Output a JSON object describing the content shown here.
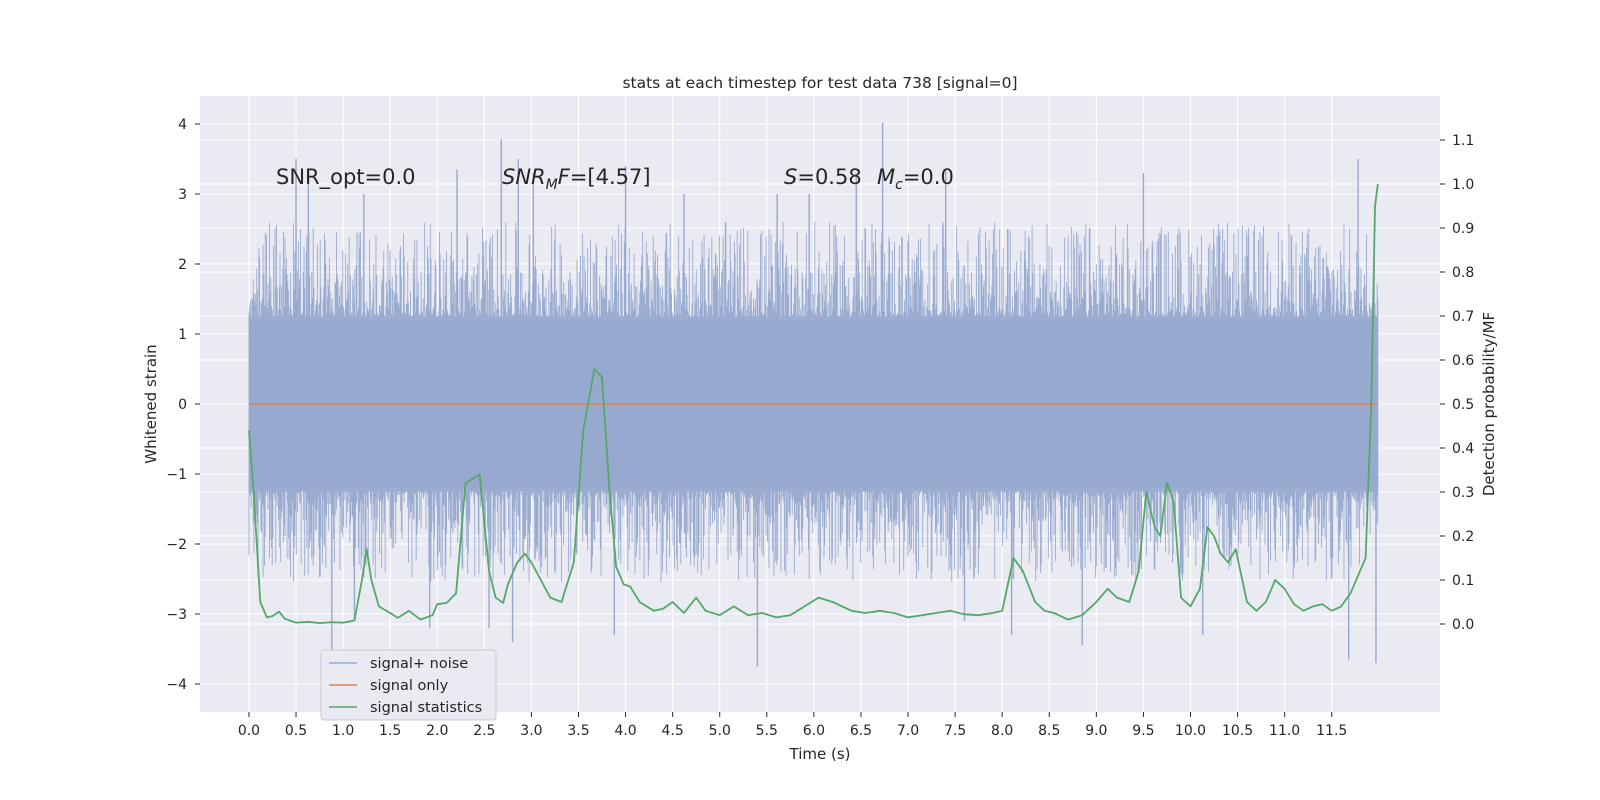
{
  "chart_data": {
    "type": "line",
    "title": "stats at each timestep for test data 738 [signal=0]",
    "xlabel": "Time (s)",
    "ylabel_left": "Whitened strain",
    "ylabel_right": "Detection probability/MF",
    "xlim": [
      -0.52,
      12.65
    ],
    "ylim_left": [
      -4.4,
      4.4
    ],
    "ylim_right": [
      -0.2,
      1.2
    ],
    "x_ticks": [
      0.0,
      0.5,
      1.0,
      1.5,
      2.0,
      2.5,
      3.0,
      3.5,
      4.0,
      4.5,
      5.0,
      5.5,
      6.0,
      6.5,
      7.0,
      7.5,
      8.0,
      8.5,
      9.0,
      9.5,
      10.0,
      10.5,
      11.0,
      11.5
    ],
    "x_tick_labels": [
      "0.0",
      "0.5",
      "1.0",
      "1.5",
      "2.0",
      "2.5",
      "3.0",
      "3.5",
      "4.0",
      "4.5",
      "5.0",
      "5.5",
      "6.0",
      "6.5",
      "7.0",
      "7.5",
      "8.0",
      "8.5",
      "9.0",
      "9.5",
      "10.0",
      "10.5",
      "11.0",
      "11.5"
    ],
    "y_ticks_left": [
      4,
      3,
      2,
      1,
      0,
      -1,
      -2,
      -3,
      -4
    ],
    "y_tick_labels_left": [
      "4",
      "3",
      "2",
      "1",
      "0",
      "−1",
      "−2",
      "−3",
      "−4"
    ],
    "y_ticks_right": [
      1.1,
      1.0,
      0.9,
      0.8,
      0.7,
      0.6,
      0.5,
      0.4,
      0.3,
      0.2,
      0.1,
      0.0
    ],
    "y_tick_labels_right": [
      "1.1",
      "1.0",
      "0.9",
      "0.8",
      "0.7",
      "0.6",
      "0.5",
      "0.4",
      "0.3",
      "0.2",
      "0.1",
      "0.0"
    ],
    "grid": true,
    "legend_position": "lower-left",
    "colors": {
      "background": "#eaeaf2",
      "grid": "#ffffff",
      "noise": "#97a9cf",
      "signal": "#dd8452",
      "stats": "#55a868"
    },
    "annotations": {
      "snr_opt": "SNR_opt=0.0",
      "snr_mf_main": "SNR",
      "snr_mf_sub": "M",
      "snr_mf_tail": "F",
      "snr_mf_value": "=[4.57]",
      "s_sym": "S",
      "s_value": "=0.58",
      "mc_main": "M",
      "mc_sub": "c",
      "mc_value": "=0.0"
    },
    "series": [
      {
        "name": "signal+ noise",
        "axis": "left",
        "x_range": [
          0.0,
          11.99
        ],
        "envelope_mean_abs": 1.25,
        "upper_spikes": [
          {
            "x": 0.5,
            "y": 3.5
          },
          {
            "x": 0.63,
            "y": 3.2
          },
          {
            "x": 1.22,
            "y": 3.0
          },
          {
            "x": 2.21,
            "y": 3.35
          },
          {
            "x": 2.68,
            "y": 3.78
          },
          {
            "x": 2.86,
            "y": 3.5
          },
          {
            "x": 3.02,
            "y": 3.3
          },
          {
            "x": 4.0,
            "y": 3.4
          },
          {
            "x": 4.62,
            "y": 3.0
          },
          {
            "x": 5.61,
            "y": 3.0
          },
          {
            "x": 5.95,
            "y": 3.0
          },
          {
            "x": 6.45,
            "y": 3.3
          },
          {
            "x": 6.73,
            "y": 4.02
          },
          {
            "x": 7.4,
            "y": 3.35
          },
          {
            "x": 9.5,
            "y": 3.3
          },
          {
            "x": 11.78,
            "y": 3.5
          }
        ],
        "lower_spikes": [
          {
            "x": 0.88,
            "y": -3.6
          },
          {
            "x": 1.12,
            "y": -3.1
          },
          {
            "x": 1.92,
            "y": -3.2
          },
          {
            "x": 2.55,
            "y": -3.2
          },
          {
            "x": 2.8,
            "y": -3.4
          },
          {
            "x": 3.88,
            "y": -3.3
          },
          {
            "x": 5.4,
            "y": -3.75
          },
          {
            "x": 7.6,
            "y": -3.1
          },
          {
            "x": 8.1,
            "y": -3.3
          },
          {
            "x": 8.85,
            "y": -3.45
          },
          {
            "x": 10.13,
            "y": -3.3
          },
          {
            "x": 11.68,
            "y": -3.65
          },
          {
            "x": 11.97,
            "y": -3.7
          }
        ]
      },
      {
        "name": "signal only",
        "axis": "left",
        "x": [
          0.0,
          11.99
        ],
        "y": [
          0.0,
          0.0
        ]
      },
      {
        "name": "signal statistics",
        "axis": "right",
        "x": [
          0.0,
          0.05,
          0.12,
          0.19,
          0.25,
          0.32,
          0.38,
          0.5,
          0.63,
          0.75,
          0.88,
          1.0,
          1.12,
          1.2,
          1.25,
          1.3,
          1.38,
          1.5,
          1.58,
          1.7,
          1.82,
          1.95,
          2.0,
          2.1,
          2.2,
          2.3,
          2.45,
          2.55,
          2.62,
          2.7,
          2.75,
          2.85,
          2.93,
          3.0,
          3.1,
          3.2,
          3.32,
          3.45,
          3.55,
          3.67,
          3.75,
          3.83,
          3.9,
          3.98,
          4.05,
          4.15,
          4.3,
          4.4,
          4.5,
          4.62,
          4.75,
          4.85,
          5.0,
          5.15,
          5.3,
          5.45,
          5.6,
          5.75,
          5.9,
          6.05,
          6.2,
          6.4,
          6.55,
          6.7,
          6.85,
          7.0,
          7.15,
          7.3,
          7.45,
          7.6,
          7.75,
          7.9,
          8.0,
          8.12,
          8.22,
          8.35,
          8.45,
          8.55,
          8.7,
          8.85,
          9.0,
          9.12,
          9.22,
          9.35,
          9.45,
          9.53,
          9.62,
          9.68,
          9.75,
          9.82,
          9.9,
          10.0,
          10.1,
          10.18,
          10.25,
          10.32,
          10.4,
          10.48,
          10.6,
          10.7,
          10.8,
          10.9,
          11.0,
          11.1,
          11.2,
          11.3,
          11.4,
          11.5,
          11.6,
          11.7,
          11.8,
          11.86,
          11.92,
          11.96,
          11.99
        ],
        "y": [
          0.44,
          0.3,
          0.05,
          0.015,
          0.018,
          0.028,
          0.012,
          0.003,
          0.005,
          0.002,
          0.004,
          0.003,
          0.008,
          0.1,
          0.17,
          0.1,
          0.04,
          0.025,
          0.014,
          0.03,
          0.01,
          0.02,
          0.045,
          0.048,
          0.07,
          0.32,
          0.34,
          0.12,
          0.06,
          0.048,
          0.09,
          0.14,
          0.16,
          0.14,
          0.1,
          0.06,
          0.05,
          0.14,
          0.44,
          0.58,
          0.56,
          0.3,
          0.13,
          0.09,
          0.085,
          0.05,
          0.03,
          0.035,
          0.05,
          0.025,
          0.06,
          0.03,
          0.02,
          0.04,
          0.02,
          0.025,
          0.015,
          0.02,
          0.04,
          0.06,
          0.05,
          0.03,
          0.025,
          0.03,
          0.025,
          0.015,
          0.02,
          0.025,
          0.03,
          0.022,
          0.02,
          0.025,
          0.03,
          0.15,
          0.12,
          0.05,
          0.03,
          0.025,
          0.01,
          0.02,
          0.05,
          0.08,
          0.06,
          0.05,
          0.12,
          0.3,
          0.22,
          0.2,
          0.32,
          0.28,
          0.06,
          0.04,
          0.08,
          0.22,
          0.2,
          0.16,
          0.14,
          0.17,
          0.05,
          0.03,
          0.05,
          0.1,
          0.08,
          0.045,
          0.03,
          0.04,
          0.045,
          0.03,
          0.04,
          0.07,
          0.12,
          0.15,
          0.5,
          0.95,
          1.0
        ]
      }
    ]
  }
}
